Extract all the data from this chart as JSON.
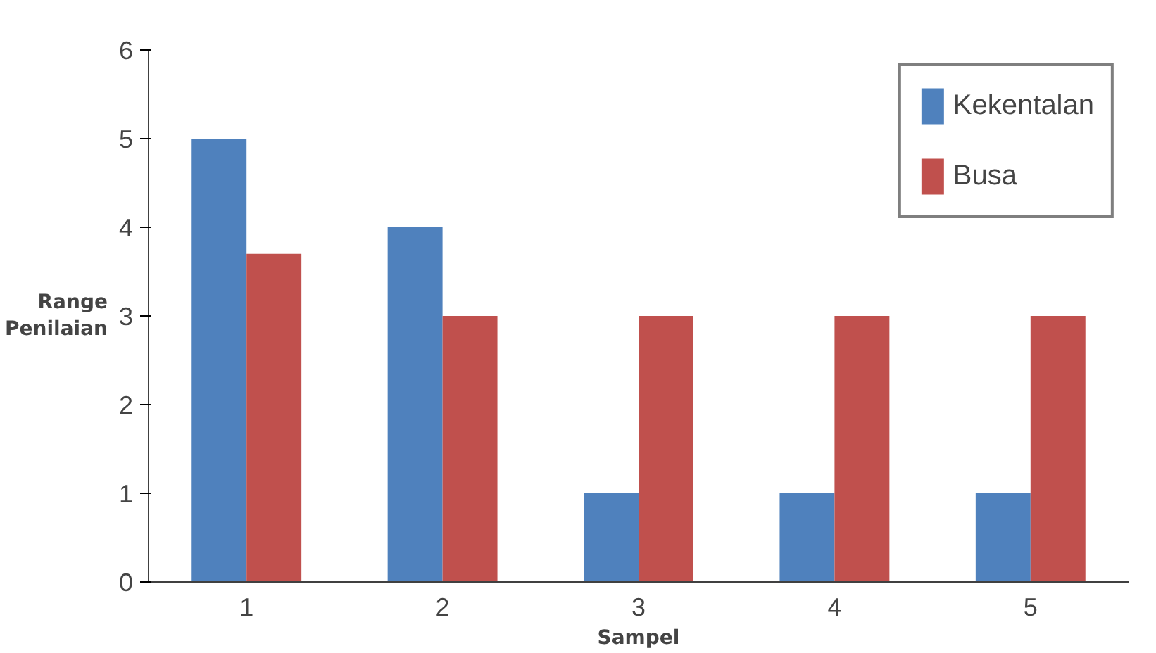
{
  "chart_data": {
    "type": "bar",
    "xlabel": "Sampel",
    "ylabel": "Range Penilaian",
    "categories": [
      "1",
      "2",
      "3",
      "4",
      "5"
    ],
    "series": [
      {
        "name": "Kekentalan",
        "color": "#4f81bd",
        "values": [
          5,
          4,
          1,
          1,
          1
        ]
      },
      {
        "name": "Busa",
        "color": "#c0504d",
        "values": [
          3.7,
          3,
          3,
          3,
          3
        ]
      }
    ],
    "ylim": [
      0,
      6
    ],
    "yticks": [
      0,
      1,
      2,
      3,
      4,
      5,
      6
    ],
    "grid": false,
    "legend": "top right"
  }
}
